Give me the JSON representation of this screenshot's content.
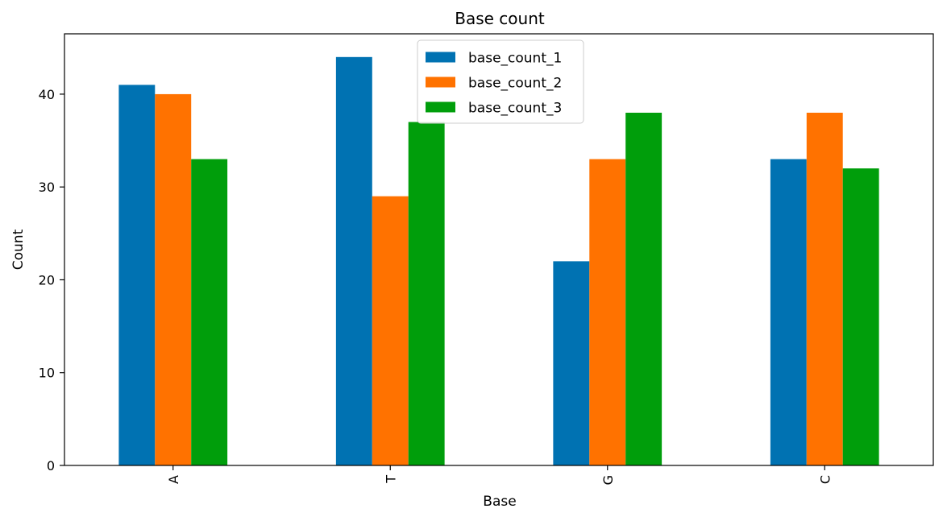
{
  "chart_data": {
    "type": "bar",
    "title": "Base count",
    "xlabel": "Base",
    "ylabel": "Count",
    "categories": [
      "A",
      "T",
      "G",
      "C"
    ],
    "ylim": [
      0,
      46.5
    ],
    "yticks": [
      0,
      10,
      20,
      30,
      40
    ],
    "grid": false,
    "legend_position": "top-center",
    "series": [
      {
        "name": "base_count_1",
        "color": "#0072b2",
        "values": [
          41,
          44,
          22,
          33
        ]
      },
      {
        "name": "base_count_2",
        "color": "#ff7200",
        "values": [
          40,
          29,
          33,
          38
        ]
      },
      {
        "name": "base_count_3",
        "color": "#009e0b",
        "values": [
          33,
          37,
          38,
          32
        ]
      }
    ]
  }
}
